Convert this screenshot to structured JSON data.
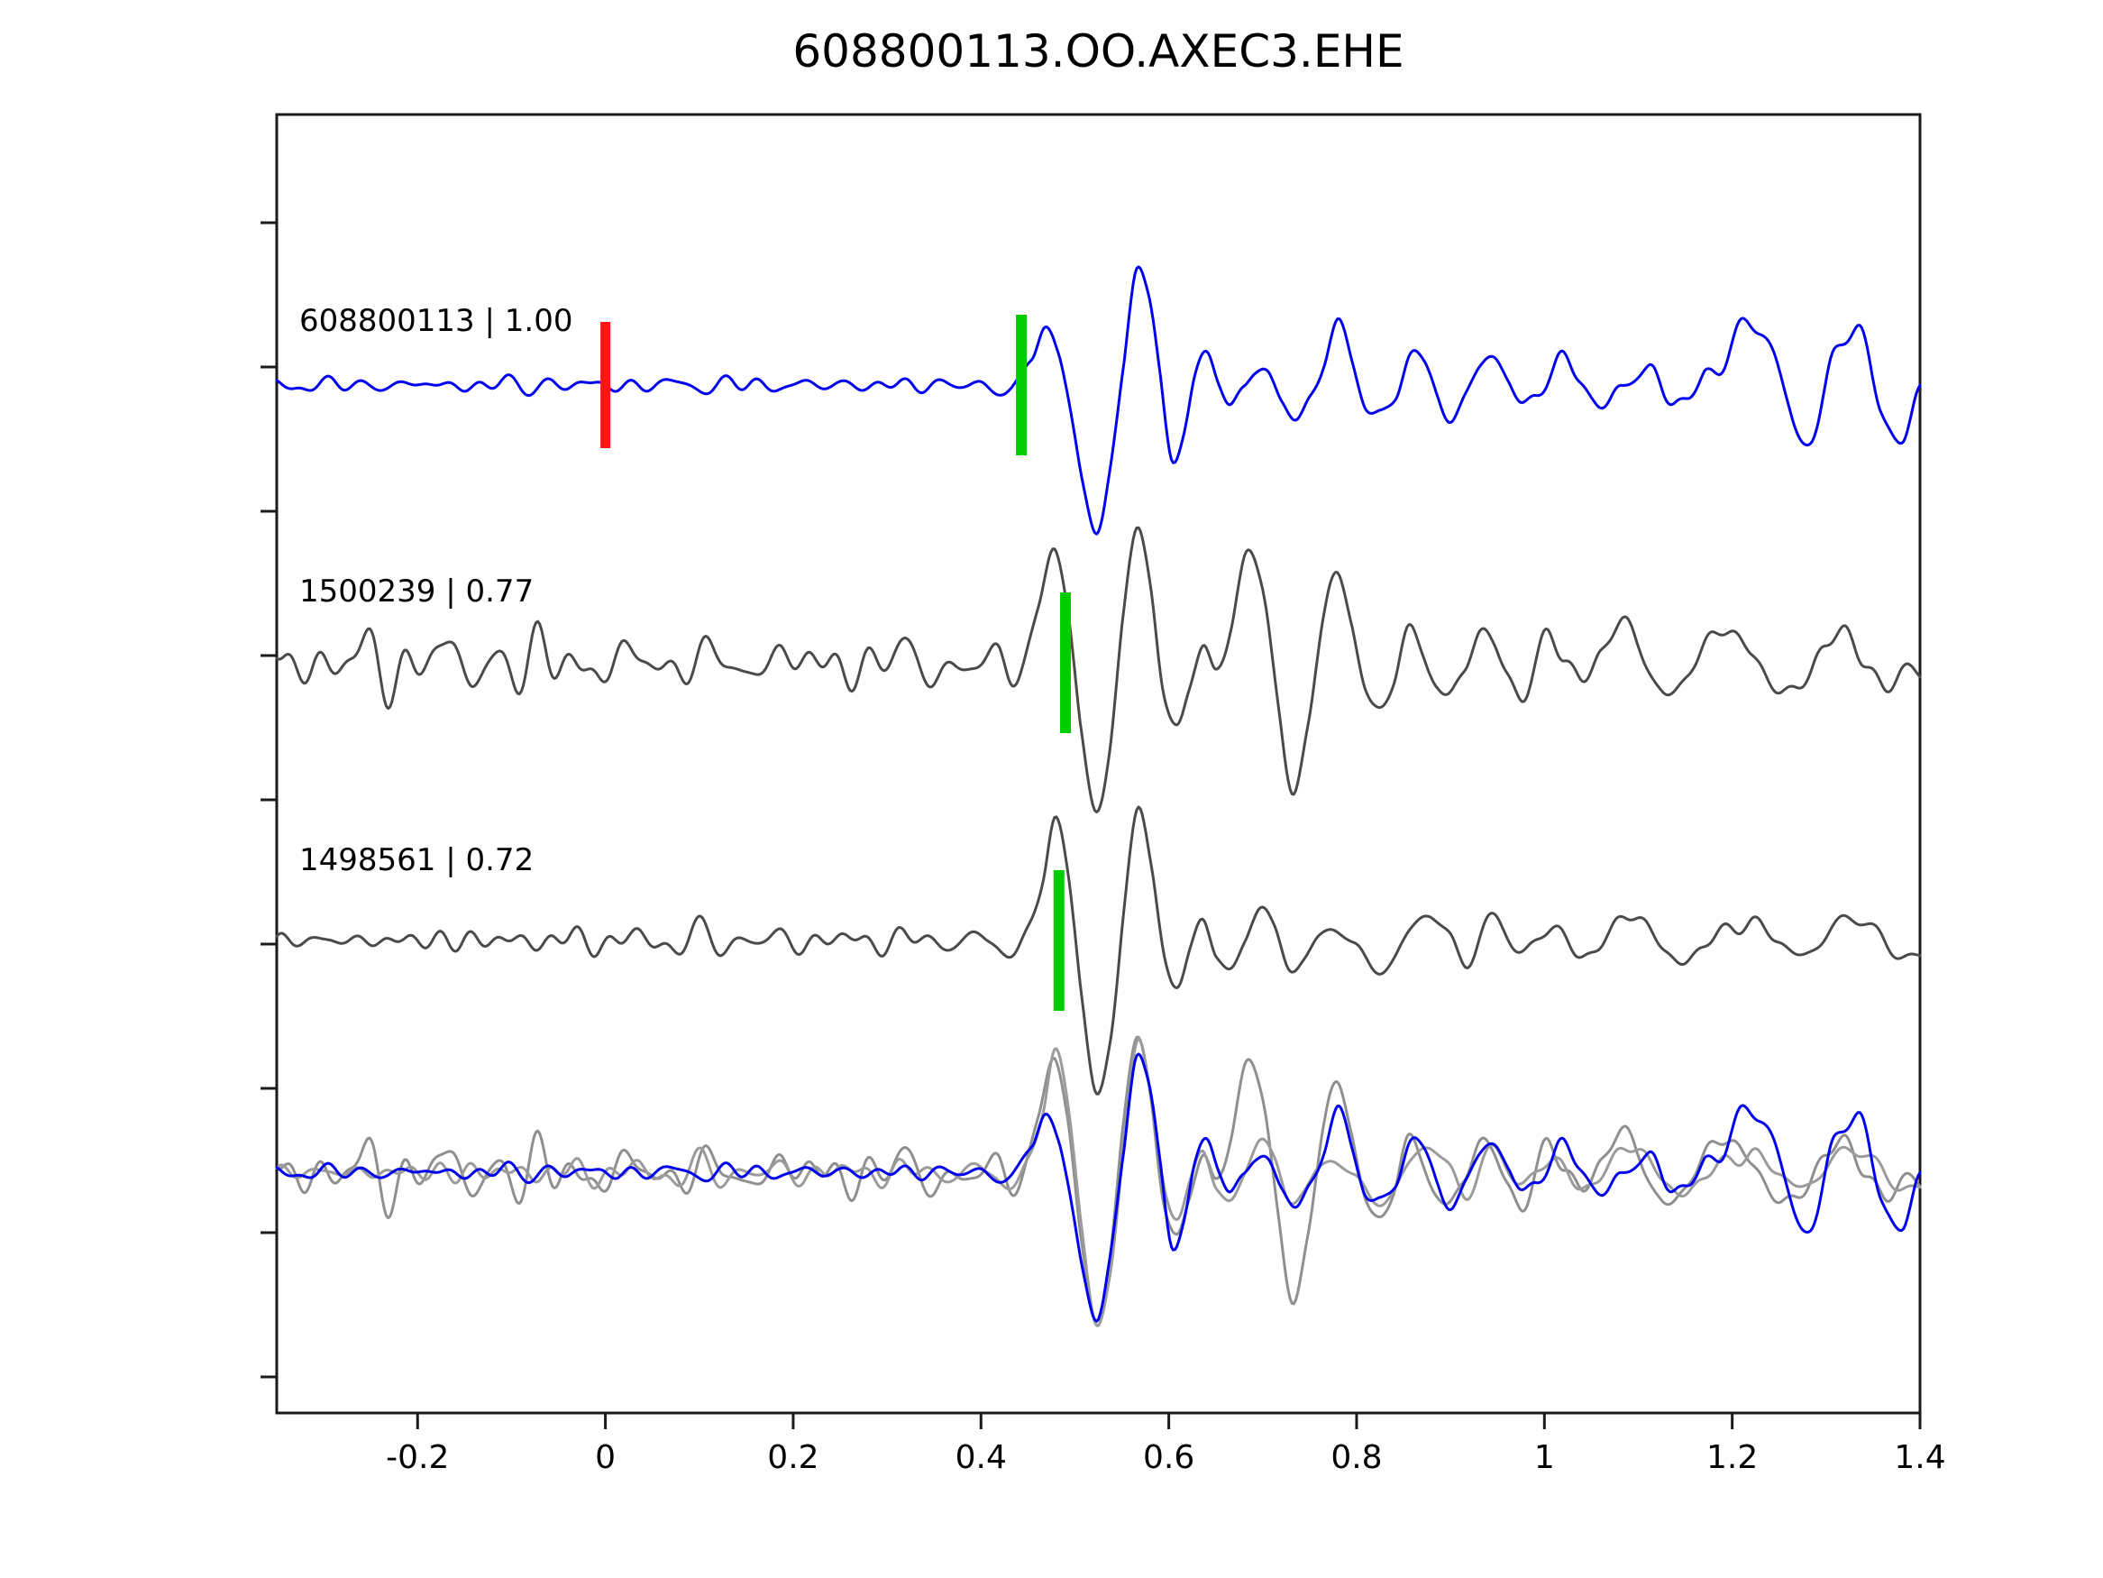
{
  "chart_data": {
    "type": "line",
    "subtype": "seismogram-cross-correlation-alignment",
    "title": "608800113.OO.AXEC3.EHE",
    "xlabel": "",
    "ylabel": "",
    "x_range": [
      -0.35,
      1.4
    ],
    "grid": false,
    "legend": "none",
    "x_ticks": [
      {
        "v": -0.2,
        "label": "-0.2"
      },
      {
        "v": 0.0,
        "label": "0"
      },
      {
        "v": 0.2,
        "label": "0.2"
      },
      {
        "v": 0.4,
        "label": "0.4"
      },
      {
        "v": 0.6,
        "label": "0.6"
      },
      {
        "v": 0.8,
        "label": "0.8"
      },
      {
        "v": 1.0,
        "label": "1"
      },
      {
        "v": 1.2,
        "label": "1.2"
      },
      {
        "v": 1.4,
        "label": "1.4"
      }
    ],
    "marker_colors": {
      "reference": "#ff1414",
      "alignment_pick": "#00cd00"
    },
    "traces": [
      {
        "id": "ref-608800113",
        "event_id": "608800113",
        "correlation": 1.0,
        "label": "608800113 | 1.00",
        "color": "#0000ee",
        "markers": [
          {
            "type": "reference-pick",
            "color": "#ff1414",
            "x": 0.0
          },
          {
            "type": "alignment-pick",
            "color": "#00cd00",
            "x": 0.443
          }
        ],
        "anchors": [
          [
            -0.35,
            0
          ],
          [
            -0.28,
            0
          ],
          [
            -0.21,
            0
          ],
          [
            -0.14,
            0
          ],
          [
            -0.07,
            0
          ],
          [
            0,
            0
          ],
          [
            0.07,
            0
          ],
          [
            0.14,
            0
          ],
          [
            0.21,
            0
          ],
          [
            0.28,
            0
          ],
          [
            0.35,
            0
          ],
          [
            0.4,
            0
          ],
          [
            0.425,
            -6
          ],
          [
            0.44,
            2
          ],
          [
            0.455,
            28
          ],
          [
            0.468,
            72
          ],
          [
            0.48,
            42
          ],
          [
            0.495,
            -28
          ],
          [
            0.51,
            -118
          ],
          [
            0.524,
            -165
          ],
          [
            0.538,
            -92
          ],
          [
            0.552,
            28
          ],
          [
            0.565,
            135
          ],
          [
            0.578,
            96
          ],
          [
            0.591,
            2
          ],
          [
            0.603,
            -78
          ],
          [
            0.616,
            -55
          ],
          [
            0.628,
            8
          ],
          [
            0.641,
            40
          ],
          [
            0.653,
            16
          ],
          [
            0.666,
            -28
          ],
          [
            0.679,
            -14
          ],
          [
            0.692,
            10
          ],
          [
            0.706,
            22
          ],
          [
            0.72,
            -12
          ],
          [
            0.736,
            -40
          ],
          [
            0.751,
            -16
          ],
          [
            0.766,
            24
          ],
          [
            0.781,
            68
          ],
          [
            0.796,
            30
          ],
          [
            0.811,
            -24
          ],
          [
            0.826,
            -40
          ],
          [
            0.841,
            -6
          ],
          [
            0.856,
            30
          ],
          [
            0.871,
            20
          ],
          [
            0.886,
            -10
          ],
          [
            0.901,
            -30
          ],
          [
            0.916,
            -14
          ],
          [
            0.931,
            16
          ],
          [
            0.946,
            32
          ],
          [
            0.961,
            6
          ],
          [
            0.976,
            -20
          ],
          [
            0.991,
            -10
          ],
          [
            1.006,
            12
          ],
          [
            1.021,
            28
          ],
          [
            1.036,
            10
          ],
          [
            1.051,
            -16
          ],
          [
            1.066,
            -26
          ],
          [
            1.081,
            0
          ],
          [
            1.096,
            18
          ],
          [
            1.111,
            8
          ],
          [
            1.126,
            -12
          ],
          [
            1.141,
            -4
          ],
          [
            1.156,
            -18
          ],
          [
            1.171,
            6
          ],
          [
            1.2,
            46
          ],
          [
            1.229,
            66
          ],
          [
            1.258,
            -16
          ],
          [
            1.284,
            -56
          ],
          [
            1.309,
            22
          ],
          [
            1.334,
            70
          ],
          [
            1.359,
            -28
          ],
          [
            1.381,
            -62
          ],
          [
            1.4,
            -12
          ]
        ],
        "noise": {
          "seed": 11,
          "n": 14,
          "fmin": 9,
          "fmax": 38,
          "env": [
            [
              -0.35,
              6
            ],
            [
              0.4,
              6
            ],
            [
              0.46,
              3
            ],
            [
              0.62,
              9
            ],
            [
              1.1,
              11
            ],
            [
              1.4,
              9
            ]
          ]
        }
      },
      {
        "id": "match-1500239",
        "event_id": "1500239",
        "correlation": 0.77,
        "label": "1500239 | 0.77",
        "color": "#4a4a4a",
        "markers": [
          {
            "type": "alignment-pick",
            "color": "#00cd00",
            "x": 0.49
          }
        ],
        "anchors": [
          [
            -0.35,
            0
          ],
          [
            -0.25,
            0
          ],
          [
            -0.15,
            0
          ],
          [
            -0.05,
            0
          ],
          [
            0.05,
            0
          ],
          [
            0.15,
            0
          ],
          [
            0.25,
            0
          ],
          [
            0.34,
            0
          ],
          [
            0.4,
            -4
          ],
          [
            0.43,
            -12
          ],
          [
            0.447,
            16
          ],
          [
            0.462,
            62
          ],
          [
            0.478,
            128
          ],
          [
            0.492,
            64
          ],
          [
            0.506,
            -78
          ],
          [
            0.522,
            -158
          ],
          [
            0.537,
            -100
          ],
          [
            0.552,
            58
          ],
          [
            0.566,
            150
          ],
          [
            0.58,
            92
          ],
          [
            0.594,
            -38
          ],
          [
            0.608,
            -72
          ],
          [
            0.622,
            -22
          ],
          [
            0.636,
            20
          ],
          [
            0.65,
            -8
          ],
          [
            0.666,
            38
          ],
          [
            0.684,
            118
          ],
          [
            0.7,
            82
          ],
          [
            0.716,
            -42
          ],
          [
            0.732,
            -145
          ],
          [
            0.748,
            -62
          ],
          [
            0.763,
            38
          ],
          [
            0.779,
            95
          ],
          [
            0.794,
            42
          ],
          [
            0.809,
            -28
          ],
          [
            0.824,
            -52
          ],
          [
            0.839,
            -12
          ],
          [
            0.854,
            34
          ],
          [
            0.869,
            12
          ],
          [
            0.884,
            -24
          ],
          [
            0.899,
            -40
          ],
          [
            0.914,
            -12
          ],
          [
            0.93,
            44
          ],
          [
            0.945,
            20
          ],
          [
            0.96,
            -18
          ],
          [
            0.975,
            -36
          ],
          [
            0.99,
            -2
          ],
          [
            1.005,
            30
          ],
          [
            1.02,
            12
          ],
          [
            1.04,
            -24
          ],
          [
            1.06,
            14
          ],
          [
            1.08,
            40
          ],
          [
            1.1,
            22
          ],
          [
            1.12,
            -18
          ],
          [
            1.14,
            -36
          ],
          [
            1.16,
            -2
          ],
          [
            1.18,
            26
          ],
          [
            1.2,
            40
          ],
          [
            1.22,
            16
          ],
          [
            1.24,
            -22
          ],
          [
            1.26,
            -40
          ],
          [
            1.28,
            -12
          ],
          [
            1.3,
            20
          ],
          [
            1.32,
            36
          ],
          [
            1.34,
            2
          ],
          [
            1.36,
            -24
          ],
          [
            1.38,
            -14
          ],
          [
            1.4,
            -18
          ]
        ],
        "noise": {
          "seed": 23,
          "n": 16,
          "fmin": 8,
          "fmax": 36,
          "env": [
            [
              -0.35,
              17
            ],
            [
              0.42,
              17
            ],
            [
              0.46,
              6
            ],
            [
              0.6,
              5
            ],
            [
              0.85,
              8
            ],
            [
              1.4,
              9
            ]
          ]
        }
      },
      {
        "id": "match-1498561",
        "event_id": "1498561",
        "correlation": 0.72,
        "label": "1498561 | 0.72",
        "color": "#4a4a4a",
        "markers": [
          {
            "type": "alignment-pick",
            "color": "#00cd00",
            "x": 0.483
          }
        ],
        "anchors": [
          [
            -0.35,
            0
          ],
          [
            -0.25,
            0
          ],
          [
            -0.15,
            0
          ],
          [
            -0.05,
            0
          ],
          [
            0.05,
            0
          ],
          [
            0.15,
            0
          ],
          [
            0.25,
            0
          ],
          [
            0.34,
            0
          ],
          [
            0.41,
            -2
          ],
          [
            0.437,
            -10
          ],
          [
            0.452,
            14
          ],
          [
            0.466,
            68
          ],
          [
            0.479,
            135
          ],
          [
            0.493,
            72
          ],
          [
            0.507,
            -58
          ],
          [
            0.523,
            -172
          ],
          [
            0.538,
            -112
          ],
          [
            0.553,
            48
          ],
          [
            0.567,
            142
          ],
          [
            0.581,
            86
          ],
          [
            0.595,
            -18
          ],
          [
            0.609,
            -46
          ],
          [
            0.623,
            -14
          ],
          [
            0.637,
            26
          ],
          [
            0.651,
            -18
          ],
          [
            0.665,
            -36
          ],
          [
            0.68,
            -2
          ],
          [
            0.697,
            40
          ],
          [
            0.712,
            12
          ],
          [
            0.728,
            -30
          ],
          [
            0.744,
            -22
          ],
          [
            0.76,
            4
          ],
          [
            0.778,
            16
          ],
          [
            0.798,
            -8
          ],
          [
            0.818,
            -34
          ],
          [
            0.838,
            -18
          ],
          [
            0.858,
            12
          ],
          [
            0.878,
            26
          ],
          [
            0.898,
            4
          ],
          [
            0.918,
            -16
          ],
          [
            0.948,
            20
          ],
          [
            0.978,
            -12
          ],
          [
            1.008,
            16
          ],
          [
            1.038,
            -20
          ],
          [
            1.068,
            10
          ],
          [
            1.098,
            26
          ],
          [
            1.128,
            -10
          ],
          [
            1.158,
            -20
          ],
          [
            1.188,
            10
          ],
          [
            1.218,
            20
          ],
          [
            1.248,
            0
          ],
          [
            1.278,
            -16
          ],
          [
            1.308,
            14
          ],
          [
            1.338,
            26
          ],
          [
            1.368,
            -12
          ],
          [
            1.4,
            -14
          ]
        ],
        "noise": {
          "seed": 37,
          "n": 16,
          "fmin": 8,
          "fmax": 36,
          "env": [
            [
              -0.35,
              10
            ],
            [
              0.03,
              12
            ],
            [
              0.09,
              17
            ],
            [
              0.16,
              11
            ],
            [
              0.42,
              12
            ],
            [
              0.47,
              5
            ],
            [
              0.6,
              5
            ],
            [
              1.4,
              8
            ]
          ]
        }
      }
    ],
    "overlay": {
      "description": "all traces aligned and superimposed",
      "members": [
        {
          "trace_index": 1,
          "color": "#8f8f8f",
          "scale": 1.0
        },
        {
          "trace_index": 2,
          "color": "#9b9b9b",
          "scale": 1.0
        },
        {
          "trace_index": 0,
          "color": "#0000ee",
          "scale": 1.0
        }
      ]
    }
  }
}
